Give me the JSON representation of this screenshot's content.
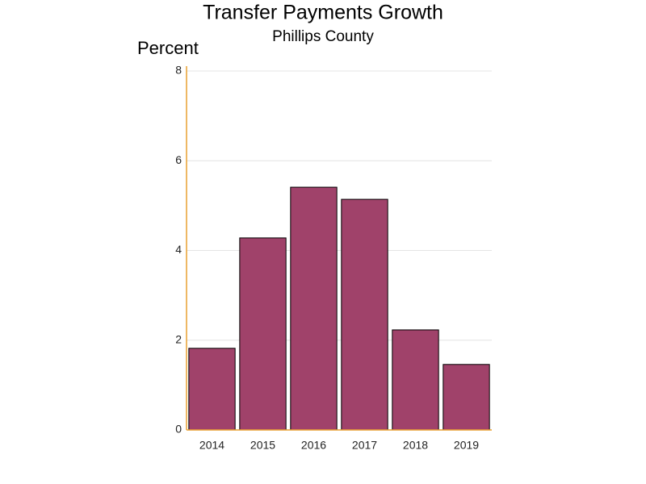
{
  "chart_data": {
    "type": "bar",
    "title": "Transfer Payments Growth",
    "subtitle": "Phillips County",
    "y_label": "Percent",
    "categories": [
      "2014",
      "2015",
      "2016",
      "2017",
      "2018",
      "2019"
    ],
    "values": [
      1.82,
      4.28,
      5.41,
      5.14,
      2.23,
      1.46
    ],
    "color": "#a0426a",
    "ylim": [
      0,
      8
    ],
    "yticks": [
      0,
      2,
      4,
      6,
      8
    ],
    "grid": true
  }
}
